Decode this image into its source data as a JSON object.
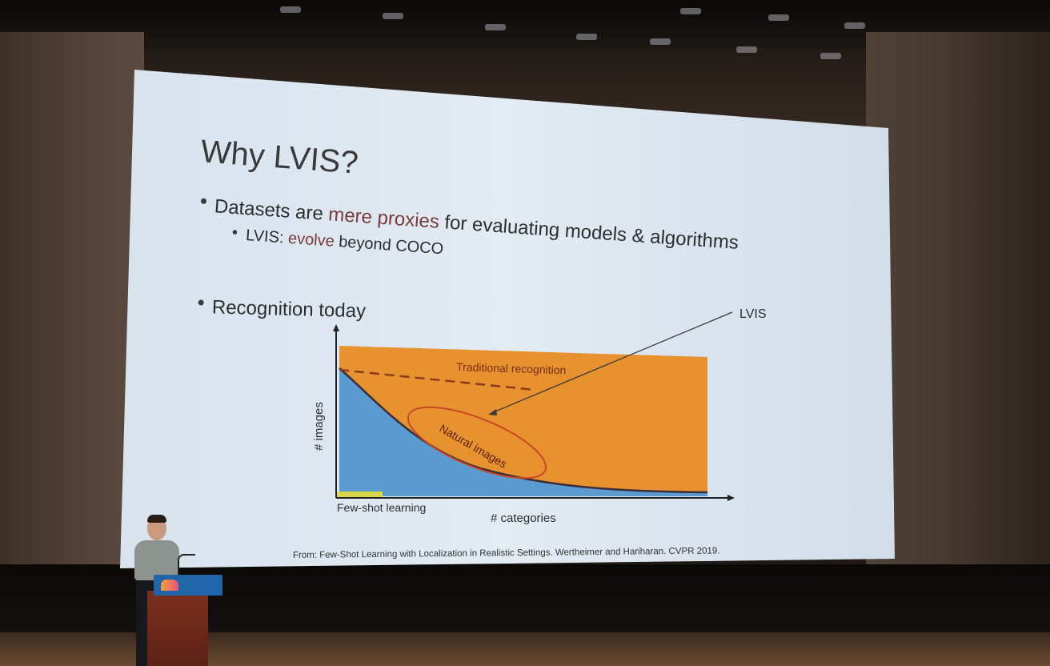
{
  "slide": {
    "title": "Why LVIS?",
    "bullet1": {
      "pre": "Datasets are ",
      "highlight": "mere proxies",
      "post": " for evaluating models & algorithms"
    },
    "sub_bullet1": {
      "pre": "LVIS: ",
      "highlight": "evolve",
      "post": " beyond COCO"
    },
    "bullet2": "Recognition today",
    "diagram": {
      "y_label": "# images",
      "x_label": "# categories",
      "traditional_label": "Traditional recognition",
      "natural_label": "Natural images",
      "lvis_label": "LVIS",
      "few_shot_label": "Few-shot learning"
    },
    "citation": "From: Few-Shot Learning with Localization in Realistic Settings. Wertheimer and Hariharan. CVPR 2019."
  },
  "colors": {
    "slide_bg": "#d7e1ec",
    "highlight": "#7a3a3a",
    "orange": "#e7922e",
    "blue": "#5c9bd1",
    "dark_curve": "#3a2d3a",
    "dashed": "#8a3a1e",
    "ellipse": "#b23a2a",
    "few_shot": "#d8d84a"
  }
}
